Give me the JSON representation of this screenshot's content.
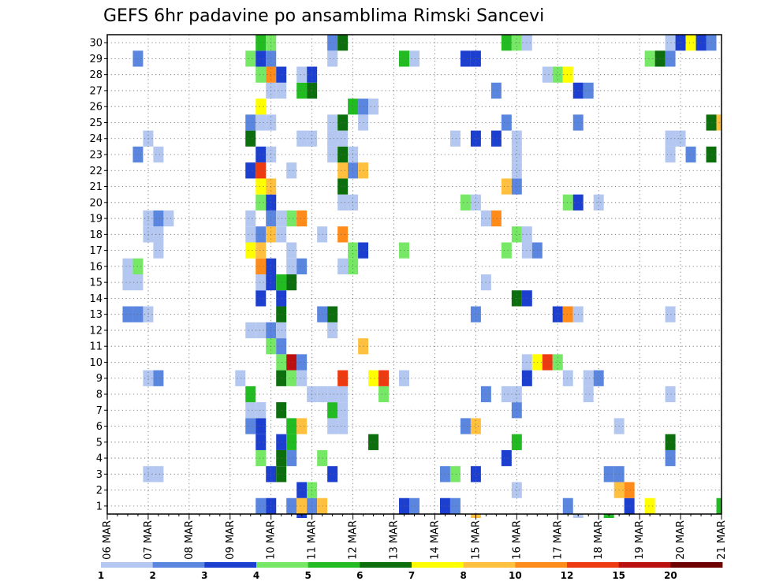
{
  "chart_data": {
    "type": "heatmap",
    "title": "GEFS 6hr padavine po ansamblima Rimski Sancevi",
    "xlabel": "",
    "ylabel": "",
    "x_tick_labels": [
      "06 MAR",
      "07 MAR",
      "08 MAR",
      "09 MAR",
      "10 MAR",
      "11 MAR",
      "12 MAR",
      "13 MAR",
      "14 MAR",
      "15 MAR",
      "16 MAR",
      "17 MAR",
      "18 MAR",
      "19 MAR",
      "20 MAR",
      "21 MAR"
    ],
    "y_tick_labels": [
      "1",
      "2",
      "3",
      "4",
      "5",
      "6",
      "7",
      "8",
      "9",
      "10",
      "11",
      "12",
      "13",
      "14",
      "15",
      "16",
      "17",
      "18",
      "19",
      "20",
      "21",
      "22",
      "23",
      "24",
      "25",
      "26",
      "27",
      "28",
      "29",
      "30"
    ],
    "time_steps": 61,
    "steps_per_day": 4,
    "members": 30,
    "grid": true,
    "colorbar": {
      "labels": [
        "1",
        "2",
        "3",
        "4",
        "5",
        "6",
        "7",
        "8",
        "10",
        "12",
        "15",
        "20"
      ],
      "colors": [
        "#b3c7f0",
        "#5b86e0",
        "#1d3fd0",
        "#77e866",
        "#22bb22",
        "#0d6e0d",
        "#ffff00",
        "#ffc040",
        "#ff8c1a",
        "#ee3a10",
        "#bb1010",
        "#6e0000"
      ]
    },
    "cells": [
      [
        1,
        15,
        2
      ],
      [
        1,
        16,
        3
      ],
      [
        1,
        18,
        2
      ],
      [
        1,
        19,
        8
      ],
      [
        1,
        20,
        2
      ],
      [
        1,
        21,
        8
      ],
      [
        1,
        29,
        3
      ],
      [
        1,
        30,
        2
      ],
      [
        1,
        33,
        3
      ],
      [
        1,
        34,
        2
      ],
      [
        1,
        45,
        2
      ],
      [
        1,
        51,
        3
      ],
      [
        1,
        53,
        7
      ],
      [
        1,
        60,
        5
      ],
      [
        2,
        19,
        3
      ],
      [
        2,
        20,
        4
      ],
      [
        2,
        40,
        1
      ],
      [
        2,
        50,
        8
      ],
      [
        2,
        51,
        9
      ],
      [
        3,
        4,
        1
      ],
      [
        3,
        5,
        1
      ],
      [
        3,
        16,
        3
      ],
      [
        3,
        17,
        6
      ],
      [
        3,
        22,
        3
      ],
      [
        3,
        33,
        2
      ],
      [
        3,
        34,
        4
      ],
      [
        3,
        36,
        3
      ],
      [
        3,
        49,
        2
      ],
      [
        3,
        50,
        2
      ],
      [
        4,
        15,
        4
      ],
      [
        4,
        17,
        6
      ],
      [
        4,
        18,
        2
      ],
      [
        4,
        21,
        4
      ],
      [
        4,
        39,
        3
      ],
      [
        4,
        55,
        2
      ],
      [
        5,
        15,
        3
      ],
      [
        5,
        17,
        3
      ],
      [
        5,
        18,
        5
      ],
      [
        5,
        26,
        6
      ],
      [
        5,
        40,
        5
      ],
      [
        5,
        55,
        6
      ],
      [
        6,
        14,
        2
      ],
      [
        6,
        15,
        3
      ],
      [
        6,
        18,
        5
      ],
      [
        6,
        19,
        8
      ],
      [
        6,
        22,
        1
      ],
      [
        6,
        23,
        1
      ],
      [
        6,
        35,
        2
      ],
      [
        6,
        36,
        8
      ],
      [
        6,
        50,
        1
      ],
      [
        7,
        14,
        1
      ],
      [
        7,
        15,
        1
      ],
      [
        7,
        17,
        6
      ],
      [
        7,
        22,
        5
      ],
      [
        7,
        23,
        1
      ],
      [
        7,
        40,
        2
      ],
      [
        8,
        14,
        5
      ],
      [
        8,
        20,
        1
      ],
      [
        8,
        21,
        1
      ],
      [
        8,
        22,
        1
      ],
      [
        8,
        23,
        1
      ],
      [
        8,
        27,
        4
      ],
      [
        8,
        37,
        2
      ],
      [
        8,
        39,
        1
      ],
      [
        8,
        40,
        1
      ],
      [
        8,
        47,
        1
      ],
      [
        8,
        55,
        1
      ],
      [
        9,
        4,
        1
      ],
      [
        9,
        5,
        2
      ],
      [
        9,
        13,
        1
      ],
      [
        9,
        17,
        6
      ],
      [
        9,
        18,
        4
      ],
      [
        9,
        19,
        1
      ],
      [
        9,
        23,
        10
      ],
      [
        9,
        26,
        7
      ],
      [
        9,
        27,
        10
      ],
      [
        9,
        29,
        1
      ],
      [
        9,
        41,
        3
      ],
      [
        9,
        45,
        1
      ],
      [
        9,
        47,
        1
      ],
      [
        9,
        48,
        2
      ],
      [
        10,
        17,
        4
      ],
      [
        10,
        18,
        11
      ],
      [
        10,
        19,
        2
      ],
      [
        10,
        41,
        1
      ],
      [
        10,
        42,
        7
      ],
      [
        10,
        43,
        10
      ],
      [
        10,
        44,
        4
      ],
      [
        11,
        16,
        4
      ],
      [
        11,
        17,
        2
      ],
      [
        11,
        25,
        8
      ],
      [
        12,
        14,
        1
      ],
      [
        12,
        15,
        1
      ],
      [
        12,
        16,
        2
      ],
      [
        12,
        17,
        1
      ],
      [
        12,
        22,
        1
      ],
      [
        13,
        2,
        2
      ],
      [
        13,
        3,
        2
      ],
      [
        13,
        4,
        1
      ],
      [
        13,
        17,
        6
      ],
      [
        13,
        21,
        2
      ],
      [
        13,
        22,
        6
      ],
      [
        13,
        36,
        2
      ],
      [
        13,
        44,
        3
      ],
      [
        13,
        45,
        9
      ],
      [
        13,
        46,
        1
      ],
      [
        13,
        55,
        1
      ],
      [
        14,
        15,
        3
      ],
      [
        14,
        17,
        3
      ],
      [
        14,
        40,
        6
      ],
      [
        14,
        41,
        3
      ],
      [
        15,
        2,
        1
      ],
      [
        15,
        3,
        1
      ],
      [
        15,
        15,
        1
      ],
      [
        15,
        16,
        3
      ],
      [
        15,
        17,
        5
      ],
      [
        15,
        18,
        6
      ],
      [
        15,
        37,
        1
      ],
      [
        16,
        2,
        1
      ],
      [
        16,
        3,
        4
      ],
      [
        16,
        15,
        9
      ],
      [
        16,
        16,
        3
      ],
      [
        16,
        18,
        1
      ],
      [
        16,
        19,
        2
      ],
      [
        16,
        23,
        1
      ],
      [
        16,
        24,
        4
      ],
      [
        17,
        5,
        1
      ],
      [
        17,
        14,
        7
      ],
      [
        17,
        15,
        8
      ],
      [
        17,
        18,
        1
      ],
      [
        17,
        24,
        4
      ],
      [
        17,
        25,
        3
      ],
      [
        17,
        29,
        4
      ],
      [
        17,
        39,
        4
      ],
      [
        17,
        41,
        1
      ],
      [
        17,
        42,
        2
      ],
      [
        18,
        4,
        1
      ],
      [
        18,
        5,
        1
      ],
      [
        18,
        14,
        1
      ],
      [
        18,
        15,
        2
      ],
      [
        18,
        16,
        8
      ],
      [
        18,
        17,
        1
      ],
      [
        18,
        21,
        1
      ],
      [
        18,
        23,
        9
      ],
      [
        18,
        40,
        4
      ],
      [
        18,
        41,
        1
      ],
      [
        19,
        4,
        1
      ],
      [
        19,
        5,
        2
      ],
      [
        19,
        6,
        1
      ],
      [
        19,
        14,
        1
      ],
      [
        19,
        16,
        2
      ],
      [
        19,
        17,
        1
      ],
      [
        19,
        18,
        4
      ],
      [
        19,
        19,
        9
      ],
      [
        19,
        37,
        1
      ],
      [
        19,
        38,
        9
      ],
      [
        20,
        15,
        4
      ],
      [
        20,
        16,
        3
      ],
      [
        20,
        23,
        1
      ],
      [
        20,
        24,
        1
      ],
      [
        20,
        35,
        4
      ],
      [
        20,
        36,
        1
      ],
      [
        20,
        45,
        4
      ],
      [
        20,
        46,
        3
      ],
      [
        20,
        48,
        1
      ],
      [
        21,
        15,
        7
      ],
      [
        21,
        16,
        8
      ],
      [
        21,
        23,
        6
      ],
      [
        21,
        39,
        8
      ],
      [
        21,
        40,
        2
      ],
      [
        22,
        14,
        3
      ],
      [
        22,
        15,
        10
      ],
      [
        22,
        18,
        1
      ],
      [
        22,
        23,
        8
      ],
      [
        22,
        24,
        2
      ],
      [
        22,
        25,
        8
      ],
      [
        22,
        40,
        1
      ],
      [
        23,
        3,
        2
      ],
      [
        23,
        5,
        1
      ],
      [
        23,
        15,
        3
      ],
      [
        23,
        16,
        1
      ],
      [
        23,
        22,
        1
      ],
      [
        23,
        23,
        6
      ],
      [
        23,
        24,
        1
      ],
      [
        23,
        40,
        1
      ],
      [
        23,
        55,
        1
      ],
      [
        23,
        57,
        2
      ],
      [
        23,
        59,
        6
      ],
      [
        24,
        4,
        1
      ],
      [
        24,
        14,
        6
      ],
      [
        24,
        19,
        1
      ],
      [
        24,
        20,
        1
      ],
      [
        24,
        22,
        1
      ],
      [
        24,
        23,
        1
      ],
      [
        24,
        34,
        1
      ],
      [
        24,
        36,
        3
      ],
      [
        24,
        38,
        3
      ],
      [
        24,
        40,
        1
      ],
      [
        24,
        55,
        1
      ],
      [
        24,
        56,
        1
      ],
      [
        25,
        14,
        2
      ],
      [
        25,
        15,
        1
      ],
      [
        25,
        16,
        1
      ],
      [
        25,
        22,
        1
      ],
      [
        25,
        23,
        6
      ],
      [
        25,
        25,
        1
      ],
      [
        25,
        39,
        2
      ],
      [
        25,
        46,
        2
      ],
      [
        25,
        59,
        6
      ],
      [
        25,
        60,
        8
      ],
      [
        26,
        15,
        7
      ],
      [
        26,
        24,
        5
      ],
      [
        26,
        25,
        2
      ],
      [
        26,
        26,
        1
      ],
      [
        27,
        16,
        1
      ],
      [
        27,
        17,
        1
      ],
      [
        27,
        19,
        5
      ],
      [
        27,
        20,
        6
      ],
      [
        27,
        38,
        2
      ],
      [
        27,
        46,
        3
      ],
      [
        27,
        47,
        2
      ],
      [
        28,
        15,
        4
      ],
      [
        28,
        16,
        9
      ],
      [
        28,
        17,
        3
      ],
      [
        28,
        19,
        1
      ],
      [
        28,
        20,
        3
      ],
      [
        28,
        43,
        1
      ],
      [
        28,
        44,
        4
      ],
      [
        28,
        45,
        7
      ],
      [
        29,
        3,
        2
      ],
      [
        29,
        14,
        4
      ],
      [
        29,
        15,
        3
      ],
      [
        29,
        16,
        2
      ],
      [
        29,
        22,
        1
      ],
      [
        29,
        29,
        5
      ],
      [
        29,
        30,
        1
      ],
      [
        29,
        35,
        3
      ],
      [
        29,
        36,
        3
      ],
      [
        29,
        53,
        4
      ],
      [
        29,
        54,
        6
      ],
      [
        29,
        55,
        2
      ],
      [
        30,
        15,
        5
      ],
      [
        30,
        16,
        4
      ],
      [
        30,
        22,
        2
      ],
      [
        30,
        23,
        6
      ],
      [
        30,
        39,
        5
      ],
      [
        30,
        40,
        4
      ],
      [
        30,
        41,
        1
      ],
      [
        30,
        55,
        1
      ],
      [
        30,
        56,
        3
      ],
      [
        30,
        57,
        7
      ],
      [
        30,
        58,
        3
      ],
      [
        30,
        59,
        2
      ]
    ],
    "below_axis_marks": [
      [
        19,
        3
      ],
      [
        36,
        8
      ],
      [
        46,
        1
      ],
      [
        49,
        5
      ]
    ]
  }
}
